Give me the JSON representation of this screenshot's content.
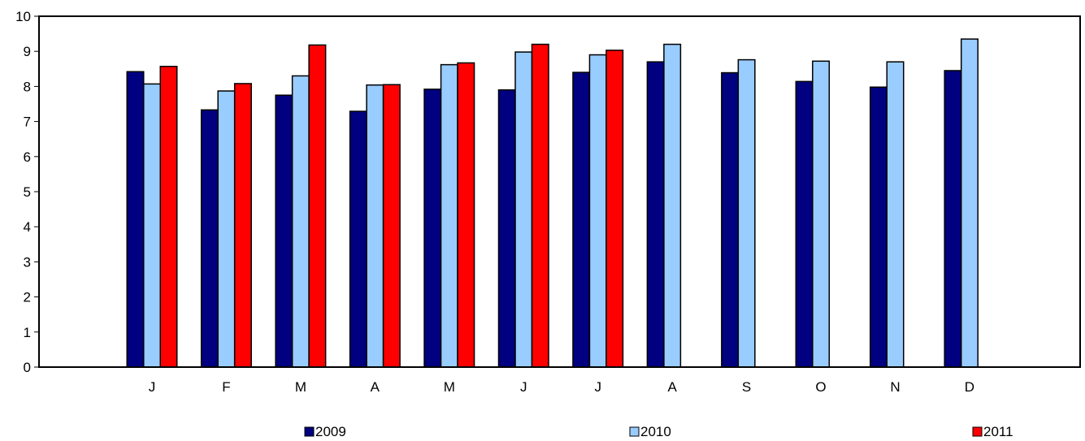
{
  "chart_data": {
    "type": "bar",
    "title": "",
    "xlabel": "",
    "ylabel": "",
    "categories": [
      "J",
      "F",
      "M",
      "A",
      "M",
      "J",
      "J",
      "A",
      "S",
      "O",
      "N",
      "D"
    ],
    "ylim": [
      0,
      10
    ],
    "yticks": [
      "0",
      "1",
      "2",
      "3",
      "4",
      "5",
      "6",
      "7",
      "8",
      "9",
      "10"
    ],
    "grid": false,
    "legend_position": "bottom",
    "series": [
      {
        "name": "2009",
        "color": "#000080",
        "values": [
          8.42,
          7.33,
          7.75,
          7.29,
          7.92,
          7.9,
          8.4,
          8.7,
          8.39,
          8.14,
          7.98,
          8.45
        ]
      },
      {
        "name": "2010",
        "color": "#99ccff",
        "values": [
          8.07,
          7.87,
          8.3,
          8.04,
          8.62,
          8.98,
          8.9,
          9.2,
          8.76,
          8.72,
          8.7,
          9.35
        ]
      },
      {
        "name": "2011",
        "color": "#ff0000",
        "values": [
          8.57,
          8.08,
          9.18,
          8.05,
          8.67,
          9.2,
          9.03,
          null,
          null,
          null,
          null,
          null
        ]
      }
    ]
  }
}
